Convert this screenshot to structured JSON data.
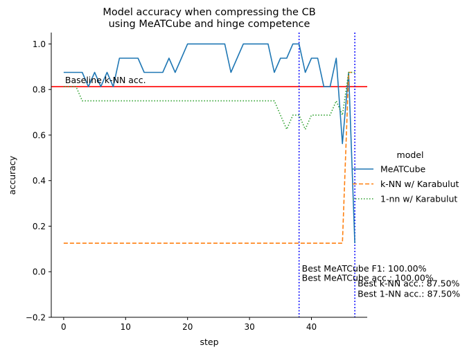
{
  "chart_data": {
    "type": "line",
    "title": [
      "Model accuracy when compressing the CB",
      "using MeATCube and hinge competence"
    ],
    "xlabel": "step",
    "ylabel": "accuracy",
    "xlim": [
      -2,
      49
    ],
    "ylim": [
      -0.2,
      1.05
    ],
    "xticks": [
      0,
      10,
      20,
      30,
      40
    ],
    "yticks": [
      -0.2,
      0.0,
      0.2,
      0.4,
      0.6,
      0.8,
      1.0
    ],
    "grid": false,
    "legend": {
      "title": "model",
      "placement": "right outside"
    },
    "series": [
      {
        "name": "MeATCube",
        "color": "#1f77b4",
        "dash": "solid",
        "x": [
          0,
          1,
          2,
          3,
          4,
          5,
          6,
          7,
          8,
          9,
          10,
          11,
          12,
          13,
          14,
          15,
          16,
          17,
          18,
          19,
          20,
          21,
          22,
          23,
          24,
          25,
          26,
          27,
          28,
          29,
          30,
          31,
          32,
          33,
          34,
          35,
          36,
          37,
          38,
          39,
          40,
          41,
          42,
          43,
          44,
          45,
          46,
          47
        ],
        "y": [
          0.875,
          0.875,
          0.875,
          0.875,
          0.8125,
          0.875,
          0.8125,
          0.875,
          0.8125,
          0.9375,
          0.9375,
          0.9375,
          0.9375,
          0.875,
          0.875,
          0.875,
          0.875,
          0.9375,
          0.875,
          0.9375,
          1.0,
          1.0,
          1.0,
          1.0,
          1.0,
          1.0,
          1.0,
          0.875,
          0.9375,
          1.0,
          1.0,
          1.0,
          1.0,
          1.0,
          0.875,
          0.9375,
          0.9375,
          1.0,
          1.0,
          0.875,
          0.9375,
          0.9375,
          0.8125,
          0.8125,
          0.9375,
          0.5625,
          0.875,
          0.125
        ]
      },
      {
        "name": "k-NN w/ Karabulut",
        "color": "#ff7f0e",
        "dash": "dashed",
        "x": [
          0,
          45,
          46,
          47
        ],
        "y": [
          0.125,
          0.125,
          0.875,
          0.875
        ]
      },
      {
        "name": "1-nn w/ Karabulut",
        "color": "#2ca02c",
        "dash": "dotted",
        "x": [
          0,
          1,
          2,
          3,
          4,
          5,
          6,
          7,
          8,
          9,
          10,
          11,
          12,
          13,
          14,
          15,
          16,
          17,
          18,
          19,
          20,
          21,
          22,
          23,
          24,
          25,
          26,
          27,
          28,
          29,
          30,
          31,
          32,
          33,
          34,
          35,
          36,
          37,
          38,
          39,
          40,
          41,
          42,
          43,
          44,
          45,
          46,
          47
        ],
        "y": [
          0.8125,
          0.8125,
          0.8125,
          0.75,
          0.75,
          0.75,
          0.75,
          0.75,
          0.75,
          0.75,
          0.75,
          0.75,
          0.75,
          0.75,
          0.75,
          0.75,
          0.75,
          0.75,
          0.75,
          0.75,
          0.75,
          0.75,
          0.75,
          0.75,
          0.75,
          0.75,
          0.75,
          0.75,
          0.75,
          0.75,
          0.75,
          0.75,
          0.75,
          0.75,
          0.75,
          0.6875,
          0.625,
          0.6875,
          0.6875,
          0.625,
          0.6875,
          0.6875,
          0.6875,
          0.6875,
          0.75,
          0.6875,
          0.875,
          0.875
        ]
      }
    ],
    "reference_lines": {
      "horizontal": {
        "y": 0.8125,
        "color": "#ff0000",
        "label": "Baseline k-NN acc."
      },
      "vertical": [
        {
          "x": 38,
          "color": "#0000ff",
          "style": "dotted"
        },
        {
          "x": 47,
          "color": "#0000ff",
          "style": "dotted"
        }
      ]
    },
    "annotations": [
      {
        "text": "Best MeATCube F1: 100.00%",
        "x": 38,
        "y": 0.0
      },
      {
        "text": "Best MeATCube acc.: 100.00%",
        "x": 38,
        "y": -0.04
      },
      {
        "text": "Best k-NN acc.: 87.50%",
        "x": 47,
        "y": -0.065
      },
      {
        "text": "Best 1-NN acc.: 87.50%",
        "x": 47,
        "y": -0.11
      }
    ]
  }
}
